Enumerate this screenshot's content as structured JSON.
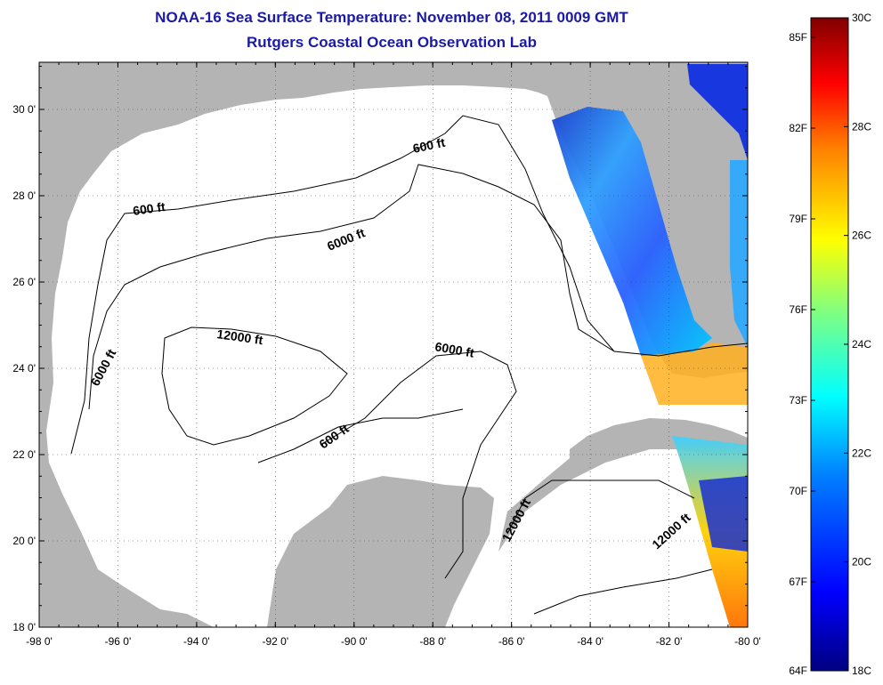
{
  "title": "NOAA-16 Sea Surface Temperature:  November 08, 2011 0009 GMT",
  "subtitle": "Rutgers Coastal Ocean Observation Lab",
  "map": {
    "lon_ticks": [
      "-98 0'",
      "-96 0'",
      "-94 0'",
      "-92 0'",
      "-90 0'",
      "-88 0'",
      "-86 0'",
      "-84 0'",
      "-82 0'",
      "-80 0'"
    ],
    "lat_ticks": [
      "30 0'",
      "28 0'",
      "26 0'",
      "24 0'",
      "22 0'",
      "20 0'",
      "18 0'"
    ],
    "land_color": "#b4b4b4",
    "water_color": "#ffffff",
    "contour_labels": [
      "600 ft",
      "600 ft",
      "6000 ft",
      "12000 ft",
      "6000 ft",
      "6000 ft",
      "600 ft",
      "12000 ft",
      "12000 ft"
    ]
  },
  "colorbar": {
    "fahrenheit_labels": [
      "85F",
      "82F",
      "79F",
      "76F",
      "73F",
      "70F",
      "67F",
      "64F"
    ],
    "celsius_labels": [
      "30C",
      "28C",
      "26C",
      "24C",
      "22C",
      "20C",
      "18C"
    ],
    "colors": [
      "#000080",
      "#0000ff",
      "#0080ff",
      "#00ffff",
      "#80ff80",
      "#ffff00",
      "#ff8000",
      "#ff0000",
      "#800000"
    ]
  }
}
